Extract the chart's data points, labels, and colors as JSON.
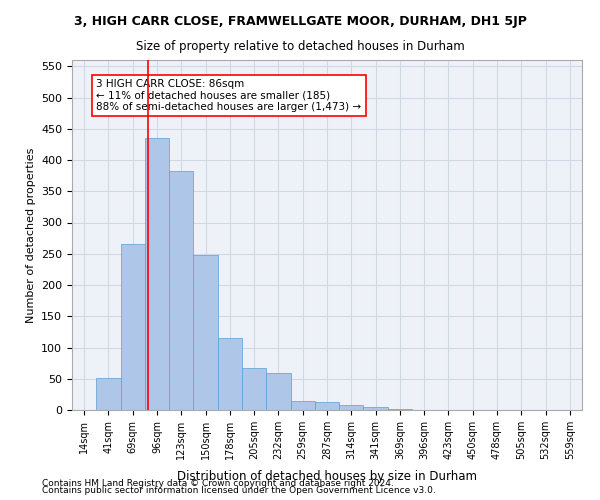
{
  "title_line1": "3, HIGH CARR CLOSE, FRAMWELLGATE MOOR, DURHAM, DH1 5JP",
  "title_line2": "Size of property relative to detached houses in Durham",
  "xlabel": "Distribution of detached houses by size in Durham",
  "ylabel": "Number of detached properties",
  "categories": [
    "14sqm",
    "41sqm",
    "69sqm",
    "96sqm",
    "123sqm",
    "150sqm",
    "178sqm",
    "205sqm",
    "232sqm",
    "259sqm",
    "287sqm",
    "314sqm",
    "341sqm",
    "369sqm",
    "396sqm",
    "423sqm",
    "450sqm",
    "478sqm",
    "505sqm",
    "532sqm",
    "559sqm"
  ],
  "values": [
    0,
    51,
    265,
    435,
    383,
    248,
    115,
    68,
    60,
    14,
    13,
    8,
    5,
    2,
    0,
    0,
    0,
    0,
    0,
    0,
    0
  ],
  "bar_color": "#aec6e8",
  "bar_edge_color": "#5a9fd4",
  "ylim": [
    0,
    560
  ],
  "yticks": [
    0,
    50,
    100,
    150,
    200,
    250,
    300,
    350,
    400,
    450,
    500,
    550
  ],
  "red_line_x": 2.67,
  "annotation_text": "3 HIGH CARR CLOSE: 86sqm\n← 11% of detached houses are smaller (185)\n88% of semi-detached houses are larger (1,473) →",
  "footnote1": "Contains HM Land Registry data © Crown copyright and database right 2024.",
  "footnote2": "Contains public sector information licensed under the Open Government Licence v3.0.",
  "bg_color": "#ffffff",
  "grid_color": "#d0d8e8"
}
